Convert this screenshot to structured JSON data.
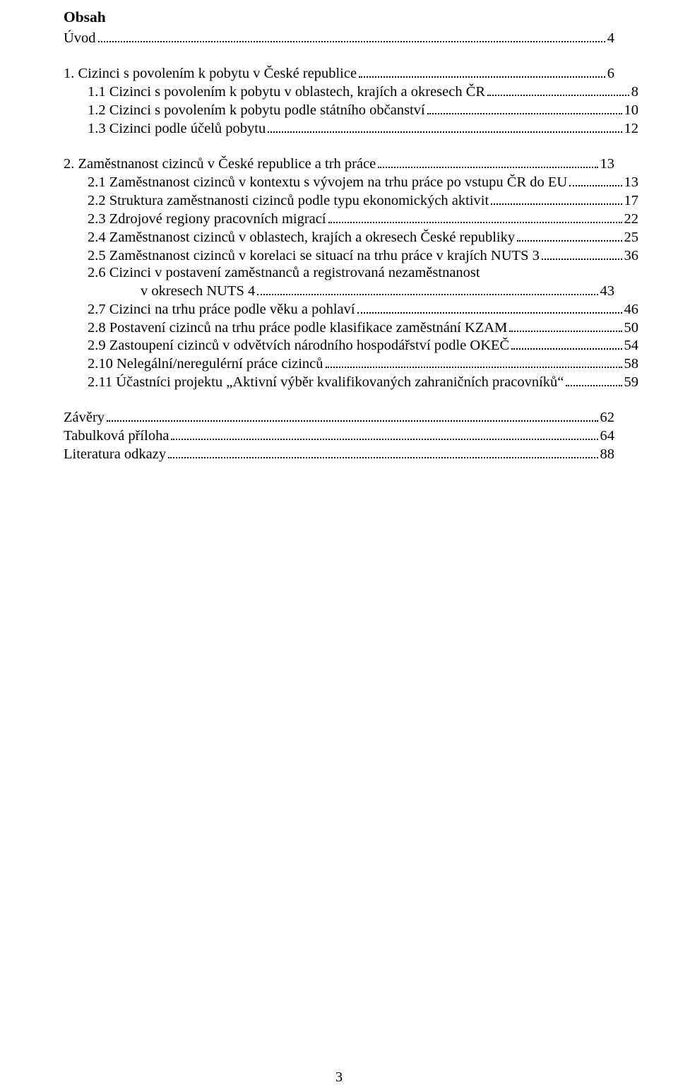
{
  "title": "Obsah",
  "page_number": "3",
  "colors": {
    "text": "#000000",
    "background": "#ffffff"
  },
  "typography": {
    "font_family": "Times New Roman",
    "base_size_pt": 15,
    "title_weight": "bold"
  },
  "toc": {
    "intro": {
      "label": "Úvod",
      "page": "4"
    },
    "sec1": {
      "heading": {
        "label": "1. Cizinci s  povolením k pobytu v České republice",
        "page": "6"
      },
      "items": [
        {
          "label": "1.1 Cizinci s povolením k pobytu v oblastech, krajích a okresech ČR",
          "page": "8"
        },
        {
          "label": "1.2 Cizinci s povolením k pobytu podle státního občanství",
          "page": "10"
        },
        {
          "label": "1.3 Cizinci podle účelů pobytu",
          "page": "12"
        }
      ]
    },
    "sec2": {
      "heading": {
        "label": "2. Zaměstnanost cizinců v České republice a trh práce",
        "page": "13"
      },
      "items": [
        {
          "label": "2.1 Zaměstnanost cizinců v kontextu s vývojem na trhu práce po vstupu ČR do EU",
          "page": "13"
        },
        {
          "label": "2.2  Struktura zaměstnanosti cizinců podle typu ekonomických aktivit",
          "page": "17"
        },
        {
          "label": "2.3 Zdrojové regiony pracovních migrací",
          "page": "22"
        },
        {
          "label": "2.4 Zaměstnanost cizinců v oblastech, krajích a okresech České republiky",
          "page": "25"
        },
        {
          "label": "2.5 Zaměstnanost cizinců v korelaci se situací na trhu práce v krajích NUTS 3",
          "page": "36"
        },
        {
          "label_line1": "2.6 Cizinci v postavení zaměstnanců a registrovaná nezaměstnanost",
          "label_line2": "v okresech NUTS 4",
          "page": "43"
        },
        {
          "label": "2.7 Cizinci na trhu práce podle věku a pohlaví",
          "page": "46"
        },
        {
          "label": "2.8 Postavení cizinců na trhu práce podle klasifikace zaměstnání KZAM",
          "page": "50"
        },
        {
          "label": "2.9 Zastoupení cizinců v odvětvích národního hospodářství podle OKEČ",
          "page": "54"
        },
        {
          "label": "2.10  Nelegální/neregulérní práce cizinců",
          "page": "58"
        },
        {
          "label": "2.11  Účastníci projektu „Aktivní výběr kvalifikovaných zahraničních pracovníků“",
          "page": "59"
        }
      ]
    },
    "tail": [
      {
        "label": "Závěry",
        "page": "62"
      },
      {
        "label": "Tabulková příloha",
        "page": "64"
      },
      {
        "label": "Literatura odkazy",
        "page": "88"
      }
    ]
  }
}
